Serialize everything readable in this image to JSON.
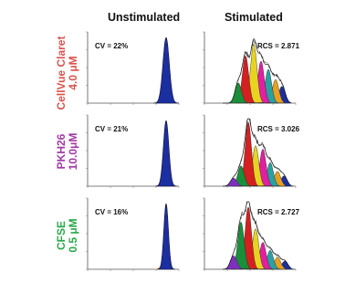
{
  "columns": {
    "unstim": "Unstimulated",
    "stim": "Stimulated"
  },
  "rows": [
    {
      "dye": "CellVue Claret",
      "conc": "4.0 μM",
      "color": "#d9534f",
      "cv": "CV = 22%",
      "rcs": "RCS = 2.871"
    },
    {
      "dye": "PKH26",
      "conc": "10.0μM",
      "color": "#a23aa6",
      "cv": "CV = 21%",
      "rcs": "RCS = 3.026"
    },
    {
      "dye": "CFSE",
      "conc": "0.5 μM",
      "color": "#2aa84a",
      "cv": "CV = 16%",
      "rcs": "RCS = 2.727"
    }
  ],
  "chart_data": {
    "type": "area",
    "description_panels": 6,
    "generation_colors": [
      "#1c2fa0",
      "#e8a020",
      "#2aa0a0",
      "#e020a0",
      "#e8d420",
      "#d42020",
      "#1a8f3a",
      "#8030c0"
    ],
    "panels": [
      {
        "id": "claret-unstim",
        "annotation": "CV = 22%",
        "peak_position": 0.86,
        "peak_width": 0.035
      },
      {
        "id": "claret-stim",
        "annotation": "RCS = 2.871",
        "generations": [
          {
            "generation": 0,
            "position": 0.85,
            "height": 0.25
          },
          {
            "generation": 1,
            "position": 0.78,
            "height": 0.35
          },
          {
            "generation": 2,
            "position": 0.7,
            "height": 0.5
          },
          {
            "generation": 3,
            "position": 0.62,
            "height": 0.62
          },
          {
            "generation": 4,
            "position": 0.54,
            "height": 0.88
          },
          {
            "generation": 5,
            "position": 0.45,
            "height": 0.7
          },
          {
            "generation": 6,
            "position": 0.37,
            "height": 0.3
          }
        ]
      },
      {
        "id": "pkh26-unstim",
        "annotation": "CV = 21%",
        "peak_position": 0.86,
        "peak_width": 0.03
      },
      {
        "id": "pkh26-stim",
        "annotation": "RCS = 3.026",
        "generations": [
          {
            "generation": 0,
            "position": 0.87,
            "height": 0.15
          },
          {
            "generation": 1,
            "position": 0.8,
            "height": 0.22
          },
          {
            "generation": 2,
            "position": 0.72,
            "height": 0.35
          },
          {
            "generation": 3,
            "position": 0.64,
            "height": 0.55
          },
          {
            "generation": 4,
            "position": 0.56,
            "height": 0.6
          },
          {
            "generation": 5,
            "position": 0.48,
            "height": 0.95
          },
          {
            "generation": 6,
            "position": 0.4,
            "height": 0.3
          },
          {
            "generation": 7,
            "position": 0.32,
            "height": 0.12
          }
        ]
      },
      {
        "id": "cfse-unstim",
        "annotation": "CV = 16%",
        "peak_position": 0.86,
        "peak_width": 0.025
      },
      {
        "id": "cfse-stim",
        "annotation": "RCS = 2.727",
        "generations": [
          {
            "generation": 0,
            "position": 0.88,
            "height": 0.12
          },
          {
            "generation": 1,
            "position": 0.8,
            "height": 0.18
          },
          {
            "generation": 2,
            "position": 0.72,
            "height": 0.28
          },
          {
            "generation": 3,
            "position": 0.64,
            "height": 0.4
          },
          {
            "generation": 4,
            "position": 0.56,
            "height": 0.6
          },
          {
            "generation": 5,
            "position": 0.48,
            "height": 0.92
          },
          {
            "generation": 6,
            "position": 0.4,
            "height": 0.7
          },
          {
            "generation": 7,
            "position": 0.32,
            "height": 0.2
          }
        ]
      }
    ]
  }
}
